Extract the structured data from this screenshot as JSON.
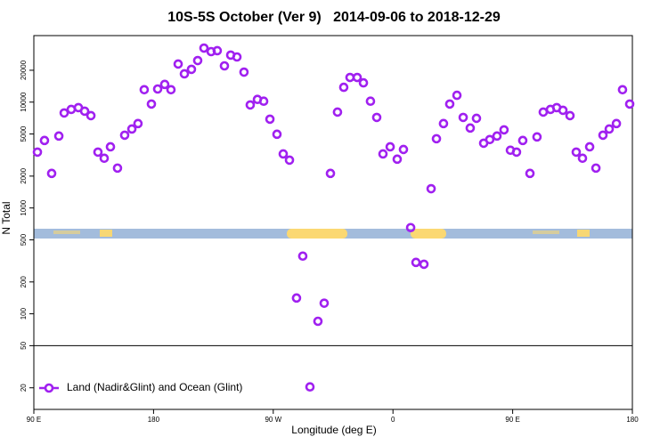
{
  "chart_data": {
    "type": "scatter",
    "title": "10S-5S October (Ver 9)   2014-09-06 to 2018-12-29",
    "x_label": "Longitude (deg E)",
    "y_label": "N Total",
    "log_y": true,
    "legend": "bottom-left",
    "hline": 50,
    "xlim": [
      90,
      540
    ],
    "ylim": [
      12.5,
      42500
    ],
    "xticks": [
      {
        "value": 90,
        "label": "90 E"
      },
      180,
      {
        "value": 270,
        "label": "90 W"
      },
      {
        "value": 360,
        "label": "0"
      },
      {
        "value": 450,
        "label": "90 E"
      },
      {
        "value": 540,
        "label": "180"
      }
    ],
    "yticks": [
      20,
      50,
      100,
      200,
      500,
      1000,
      2000,
      5000,
      10000,
      20000
    ],
    "series": [
      {
        "name": "Land (Nadir&Glint) and Ocean (Glint)",
        "color": "#a020f0",
        "x": [
          92.7,
          98,
          103.4,
          108.8,
          112.8,
          118.1,
          123.5,
          128.2,
          132.9,
          138.2,
          142.9,
          147.6,
          152.9,
          158.3,
          163.7,
          168.3,
          173,
          178.4,
          183.1,
          188.4,
          193.1,
          198.5,
          203.2,
          208.5,
          213.2,
          217.9,
          223.3,
          227.9,
          233.3,
          238,
          242.7,
          248,
          252.7,
          258.1,
          262.8,
          267.5,
          272.8,
          277.5,
          282.2,
          287.5,
          292.2,
          297.6,
          303.6,
          308.3,
          313,
          318.3,
          323,
          327.7,
          333.1,
          337.8,
          343.1,
          347.8,
          352.5,
          357.9,
          363.2,
          367.9,
          373.3,
          377.3,
          383.3,
          388.7,
          392.7,
          398,
          402.7,
          408.1,
          412.8,
          418.1,
          422.8,
          428.2,
          432.8,
          438.2,
          443.5,
          448.3,
          452.9,
          457.6,
          463,
          468.3,
          473,
          478.4,
          483.1,
          487.8,
          493.1,
          497.8,
          502.5,
          507.9,
          512.6,
          517.9,
          522.6,
          528,
          532.6,
          538
        ],
        "values": [
          3370,
          4340,
          2120,
          4780,
          7900,
          8530,
          8870,
          8210,
          7450,
          3370,
          2950,
          3780,
          2380,
          4870,
          5570,
          6270,
          13100,
          9590,
          13300,
          14700,
          13100,
          22900,
          18500,
          20400,
          24700,
          32400,
          30000,
          30600,
          22000,
          27800,
          26700,
          19200,
          9400,
          10600,
          10200,
          6900,
          4970,
          3240,
          2830,
          141,
          351,
          20.4,
          85,
          126,
          2120,
          8050,
          13800,
          17100,
          17100,
          15200,
          10200,
          7170,
          3240,
          3780,
          2890,
          3570,
          652,
          306,
          294,
          1520,
          4510,
          6270,
          9590,
          11600,
          7170,
          5690,
          7030,
          4090,
          4430,
          4780,
          5470,
          3510,
          3370,
          4340,
          2120,
          4690,
          8050,
          8530,
          8870,
          8370,
          7450,
          3370,
          2950,
          3780,
          2380,
          4870,
          5570,
          6270,
          13100,
          9590
        ]
      }
    ]
  }
}
